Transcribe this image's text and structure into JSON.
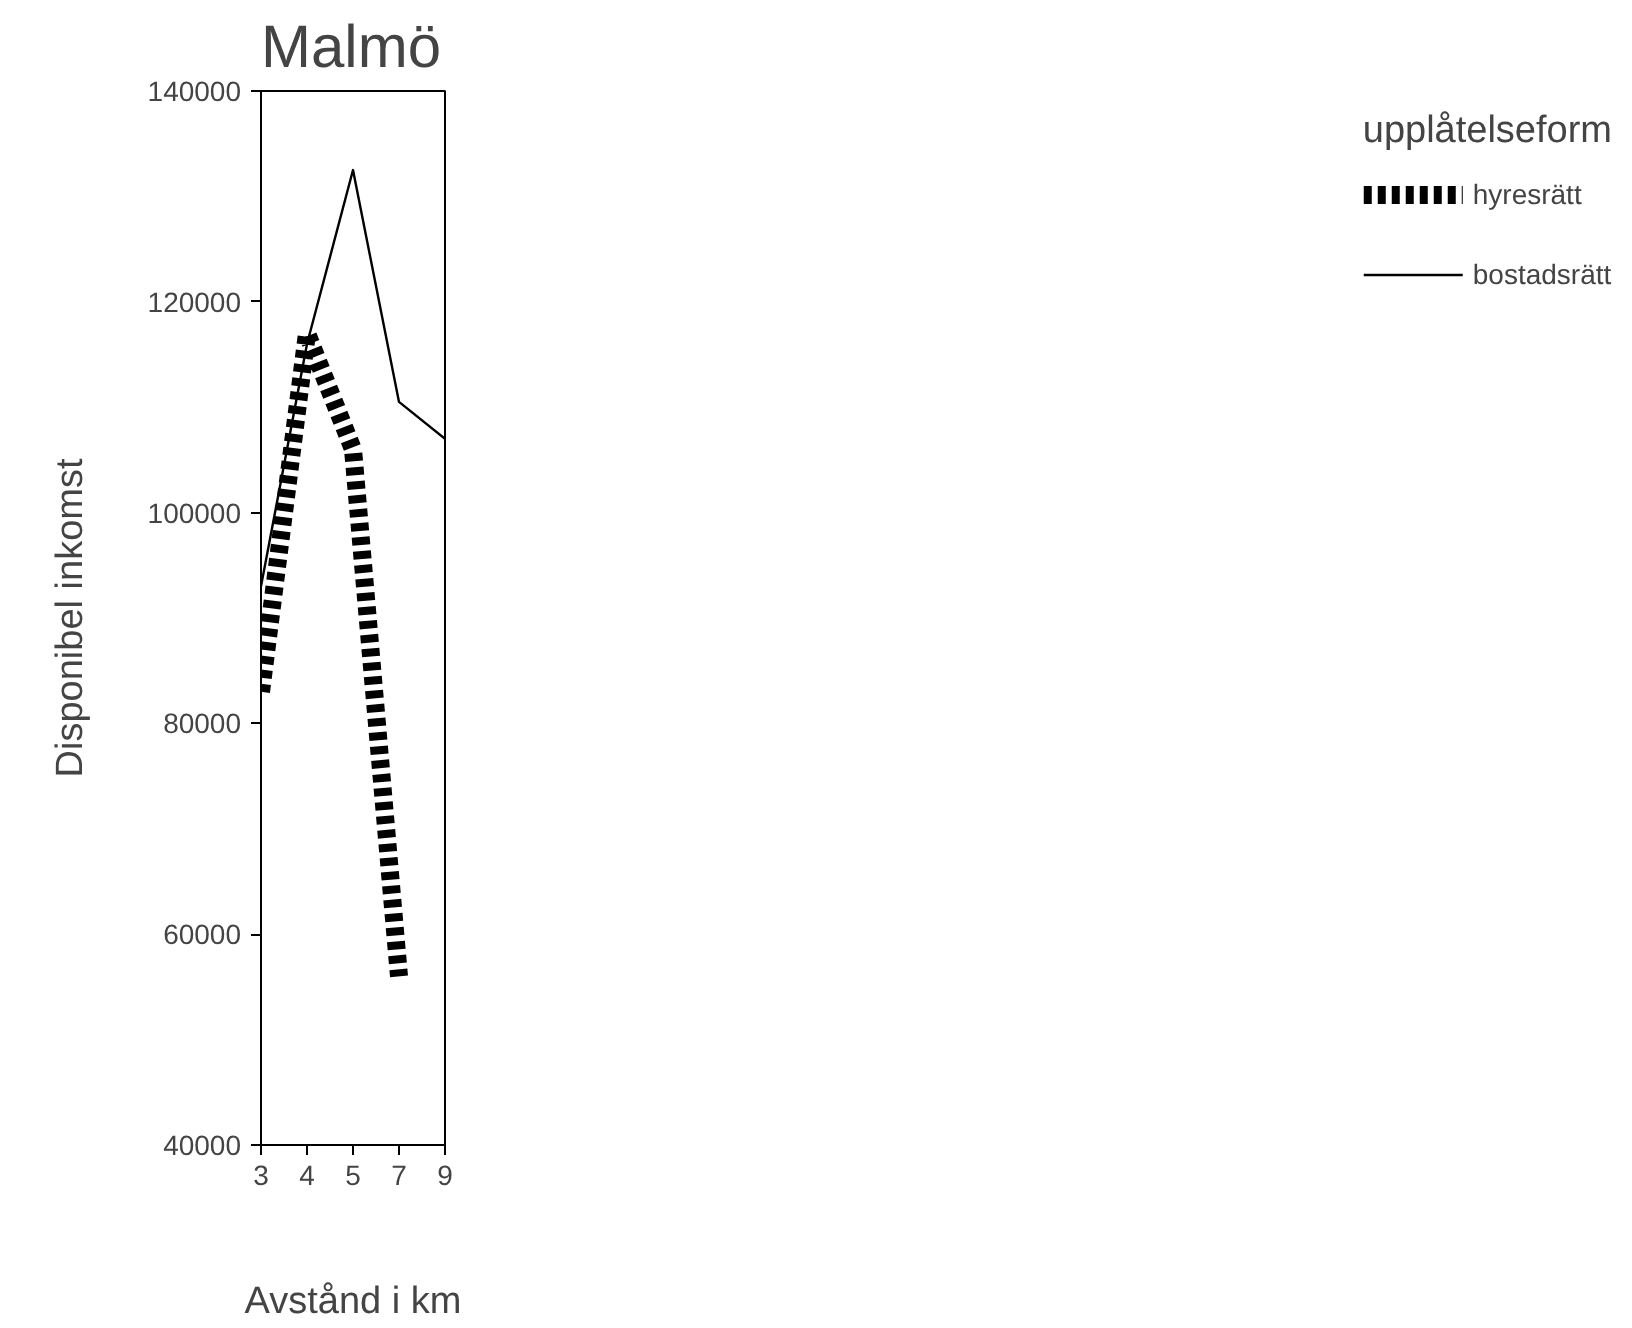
{
  "chart_data": {
    "type": "line",
    "title": "Malmö",
    "xlabel": "Avstånd i km",
    "ylabel": "Disponibel inkomst",
    "legend_title": "upplåtelseform",
    "legend": "right",
    "grid": false,
    "marker": "none",
    "categories": [
      "3",
      "4",
      "5",
      "7",
      "9"
    ],
    "ylim": [
      40000,
      140000
    ],
    "yticks": [
      40000,
      60000,
      80000,
      100000,
      120000,
      140000
    ],
    "series": [
      {
        "name": "hyresrätt",
        "color": "#000000",
        "line_style": "dashed",
        "values": [
          83000,
          117000,
          106000,
          56000,
          null
        ]
      },
      {
        "name": "bostadsrätt",
        "color": "#000000",
        "line_style": "solid",
        "values": [
          93000,
          116000,
          132500,
          110500,
          107000
        ]
      }
    ]
  }
}
